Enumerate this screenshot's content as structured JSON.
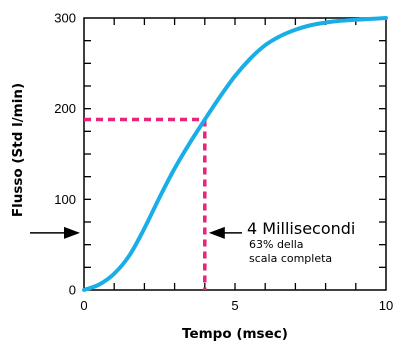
{
  "chart_data": {
    "type": "line",
    "title": "",
    "xlabel": "Tempo (msec)",
    "ylabel": "Flusso (Std l/min)",
    "xlim": [
      0,
      10
    ],
    "ylim": [
      0,
      300
    ],
    "x_ticks": [
      0,
      5,
      10
    ],
    "y_ticks": [
      0,
      100,
      200,
      300
    ],
    "x_minor_tick_step": 1,
    "y_minor_tick_step": 25,
    "grid": false,
    "line_color": "#1AAEE6",
    "series": [
      {
        "x": [
          0,
          0.5,
          1,
          1.5,
          2,
          2.5,
          3,
          3.5,
          4,
          4.5,
          5,
          5.5,
          6,
          6.5,
          7,
          7.5,
          8,
          8.5,
          9,
          9.5,
          10
        ],
        "values": [
          0,
          6,
          18,
          38,
          68,
          102,
          134,
          162,
          188,
          213,
          236,
          255,
          270,
          280,
          287,
          292,
          295,
          297,
          298,
          299,
          300
        ]
      }
    ],
    "annotations": {
      "highlight_x": 4,
      "highlight_y": 188,
      "highlight_color": "#E8237A",
      "arrow_y_value": 63,
      "label_main": "4 Millisecondi",
      "label_sub_1": "63% della",
      "label_sub_2": "scala completa"
    }
  }
}
